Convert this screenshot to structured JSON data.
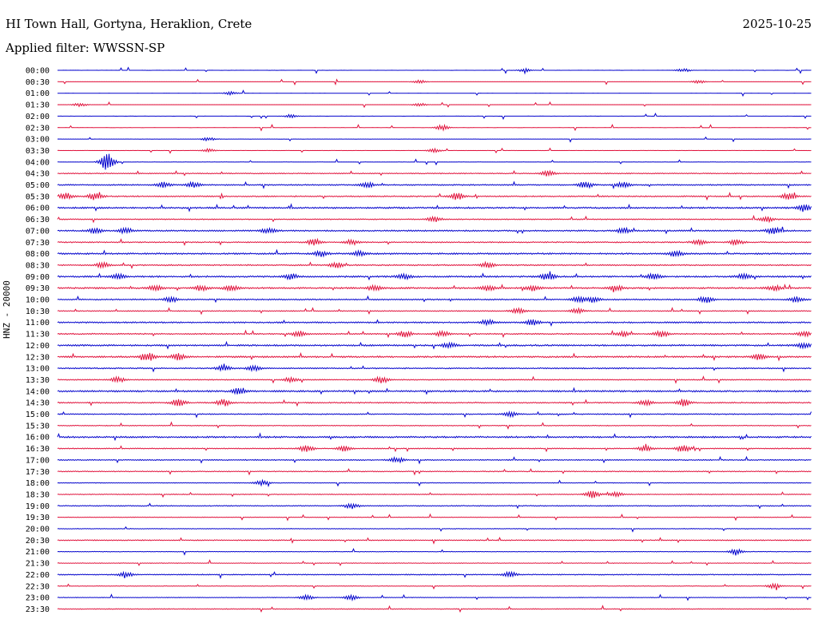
{
  "header": {
    "station": "HI Town Hall, Gortyna, Heraklion, Crete",
    "date": "2025-10-25",
    "filter": "Applied filter: WWSSN-SP"
  },
  "chart_data": {
    "type": "line",
    "title": "HI Town Hall, Gortyna, Heraklion, Crete",
    "subtitle": "Applied filter: WWSSN-SP",
    "date": "2025-10-25",
    "ylabel": "HNZ - 20000",
    "xlabel": "",
    "colors": [
      "#0000cc",
      "#e0103a"
    ],
    "row_labels": [
      "00:00",
      "00:30",
      "01:00",
      "01:30",
      "02:00",
      "02:30",
      "03:00",
      "03:30",
      "04:00",
      "04:30",
      "05:00",
      "05:30",
      "06:00",
      "06:30",
      "07:00",
      "07:30",
      "08:00",
      "08:30",
      "09:00",
      "09:30",
      "10:00",
      "10:30",
      "11:00",
      "11:30",
      "12:00",
      "12:30",
      "13:00",
      "13:30",
      "14:00",
      "14:30",
      "15:00",
      "15:30",
      "16:00",
      "16:30",
      "17:00",
      "17:30",
      "18:00",
      "18:30",
      "19:00",
      "19:30",
      "20:00",
      "20:30",
      "21:00",
      "21:30",
      "22:00",
      "22:30",
      "23:00",
      "23:30"
    ],
    "noise_level": [
      0.05,
      0.05,
      0.05,
      0.05,
      0.05,
      0.1,
      0.1,
      0.1,
      0.15,
      0.5,
      0.6,
      0.6,
      0.8,
      0.5,
      0.7,
      0.6,
      0.8,
      0.6,
      0.8,
      0.8,
      0.6,
      0.5,
      0.7,
      0.6,
      0.8,
      0.8,
      0.6,
      0.5,
      0.8,
      0.6,
      0.5,
      0.4,
      0.8,
      0.5,
      0.5,
      0.5,
      0.3,
      0.4,
      0.5,
      0.3,
      0.3,
      0.5,
      0.3,
      0.3,
      0.5,
      0.3,
      0.3,
      0.4
    ],
    "events": [
      [
        [
          0.62,
          2
        ],
        [
          0.83,
          2
        ]
      ],
      [
        [
          0.48,
          2
        ],
        [
          0.85,
          2
        ]
      ],
      [
        [
          0.23,
          2
        ]
      ],
      [
        [
          0.03,
          2
        ],
        [
          0.48,
          2
        ]
      ],
      [
        [
          0.31,
          2
        ]
      ],
      [
        [
          0.51,
          3
        ]
      ],
      [
        [
          0.2,
          2
        ]
      ],
      [
        [
          0.2,
          2
        ],
        [
          0.5,
          2
        ]
      ],
      [
        [
          0.066,
          12
        ]
      ],
      [
        [
          0.65,
          3
        ]
      ],
      [
        [
          0.14,
          3
        ],
        [
          0.18,
          3
        ],
        [
          0.41,
          3
        ],
        [
          0.7,
          4
        ],
        [
          0.75,
          3
        ]
      ],
      [
        [
          0.01,
          4
        ],
        [
          0.05,
          4
        ],
        [
          0.53,
          4
        ],
        [
          0.97,
          4
        ]
      ],
      [
        [
          0.99,
          4
        ]
      ],
      [
        [
          0.5,
          3
        ],
        [
          0.94,
          3
        ]
      ],
      [
        [
          0.05,
          3
        ],
        [
          0.09,
          3
        ],
        [
          0.28,
          3
        ],
        [
          0.75,
          3
        ],
        [
          0.95,
          4
        ]
      ],
      [
        [
          0.34,
          4
        ],
        [
          0.39,
          3
        ],
        [
          0.85,
          3
        ],
        [
          0.9,
          3
        ]
      ],
      [
        [
          0.35,
          3
        ],
        [
          0.4,
          3
        ],
        [
          0.82,
          3
        ]
      ],
      [
        [
          0.06,
          3
        ],
        [
          0.37,
          3
        ],
        [
          0.57,
          3
        ]
      ],
      [
        [
          0.08,
          3
        ],
        [
          0.31,
          3
        ],
        [
          0.46,
          3
        ],
        [
          0.65,
          4
        ],
        [
          0.79,
          3
        ],
        [
          0.91,
          3
        ]
      ],
      [
        [
          0.13,
          3
        ],
        [
          0.19,
          3
        ],
        [
          0.23,
          3
        ],
        [
          0.42,
          3
        ],
        [
          0.57,
          3
        ],
        [
          0.63,
          3
        ],
        [
          0.74,
          3
        ],
        [
          0.95,
          3
        ]
      ],
      [
        [
          0.15,
          3
        ],
        [
          0.69,
          3
        ],
        [
          0.71,
          3
        ],
        [
          0.86,
          4
        ],
        [
          0.98,
          3
        ]
      ],
      [
        [
          0.61,
          3
        ],
        [
          0.69,
          3
        ]
      ],
      [
        [
          0.57,
          3
        ],
        [
          0.63,
          3
        ]
      ],
      [
        [
          0.32,
          3
        ],
        [
          0.46,
          4
        ],
        [
          0.51,
          3
        ],
        [
          0.75,
          3
        ],
        [
          0.8,
          4
        ],
        [
          0.99,
          3
        ]
      ],
      [
        [
          0.52,
          3
        ],
        [
          0.99,
          3
        ]
      ],
      [
        [
          0.12,
          5
        ],
        [
          0.16,
          4
        ],
        [
          0.93,
          3
        ]
      ],
      [
        [
          0.22,
          3
        ],
        [
          0.26,
          3
        ]
      ],
      [
        [
          0.08,
          3
        ],
        [
          0.31,
          3
        ],
        [
          0.43,
          4
        ]
      ],
      [
        [
          0.24,
          3
        ]
      ],
      [
        [
          0.16,
          4
        ],
        [
          0.22,
          4
        ],
        [
          0.78,
          3
        ],
        [
          0.83,
          4
        ]
      ],
      [
        [
          0.6,
          3
        ]
      ],
      [],
      [],
      [
        [
          0.33,
          4
        ],
        [
          0.38,
          3
        ],
        [
          0.78,
          3
        ],
        [
          0.83,
          4
        ]
      ],
      [
        [
          0.45,
          3
        ]
      ],
      [],
      [
        [
          0.27,
          3
        ]
      ],
      [
        [
          0.71,
          4
        ],
        [
          0.74,
          3
        ]
      ],
      [
        [
          0.39,
          3
        ]
      ],
      [],
      [],
      [],
      [
        [
          0.9,
          3
        ]
      ],
      [],
      [
        [
          0.09,
          3
        ],
        [
          0.6,
          3
        ]
      ],
      [
        [
          0.95,
          3
        ]
      ],
      [
        [
          0.33,
          3
        ],
        [
          0.39,
          3
        ]
      ],
      []
    ]
  }
}
